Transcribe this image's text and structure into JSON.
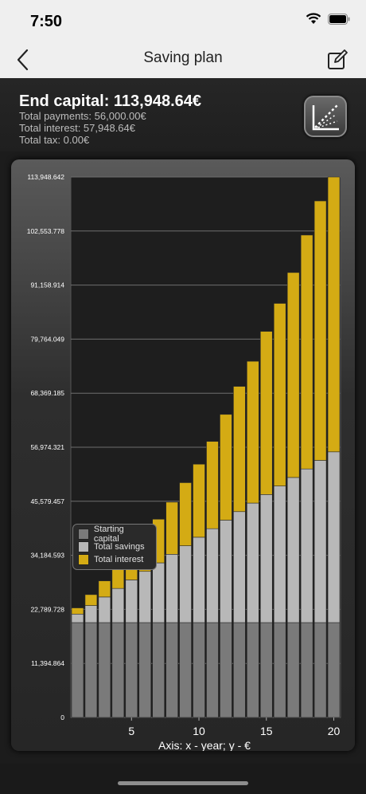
{
  "status_bar": {
    "time": "7:50"
  },
  "nav": {
    "title": "Saving plan"
  },
  "summary": {
    "end_capital": "End capital: 113,948.64€",
    "total_payments": "Total payments: 56,000.00€",
    "total_interest": "Total interest: 57,948.64€",
    "total_tax": "Total tax: 0.00€"
  },
  "legend": {
    "starting_capital": "Starting capital",
    "total_savings": "Total savings",
    "total_interest": "Total interest"
  },
  "colors": {
    "starting_capital": "#7a7a7a",
    "total_savings": "#b8b8b8",
    "total_interest": "#d4ab14"
  },
  "chart_data": {
    "type": "bar",
    "stacked": true,
    "xlabel": "Axis: x - year; y - €",
    "x": [
      1,
      2,
      3,
      4,
      5,
      6,
      7,
      8,
      9,
      10,
      11,
      12,
      13,
      14,
      15,
      16,
      17,
      18,
      19,
      20
    ],
    "x_ticks": [
      "5",
      "10",
      "15",
      "20"
    ],
    "y_ticks": [
      "0",
      "11,394.864",
      "22,789.728",
      "34,184.593",
      "45,579.457",
      "56,974.321",
      "68,369.185",
      "79,764.049",
      "91,158.914",
      "102,553.778",
      "113,948.642"
    ],
    "ylim": [
      0,
      113948.642
    ],
    "grid": true,
    "series": [
      {
        "name": "Starting capital",
        "values": [
          20000,
          20000,
          20000,
          20000,
          20000,
          20000,
          20000,
          20000,
          20000,
          20000,
          20000,
          20000,
          20000,
          20000,
          20000,
          20000,
          20000,
          20000,
          20000,
          20000
        ]
      },
      {
        "name": "Total savings",
        "values": [
          1800,
          3600,
          5400,
          7200,
          9000,
          10800,
          12600,
          14400,
          16200,
          18000,
          19800,
          21600,
          23400,
          25200,
          27000,
          28800,
          30600,
          32400,
          34200,
          36000
        ]
      },
      {
        "name": "Total interest",
        "values": [
          1300,
          2300,
          3400,
          4700,
          6100,
          7600,
          9200,
          11000,
          13300,
          15400,
          18400,
          22300,
          26400,
          29900,
          34400,
          38500,
          43200,
          49300,
          54700,
          57948.64
        ]
      }
    ]
  }
}
